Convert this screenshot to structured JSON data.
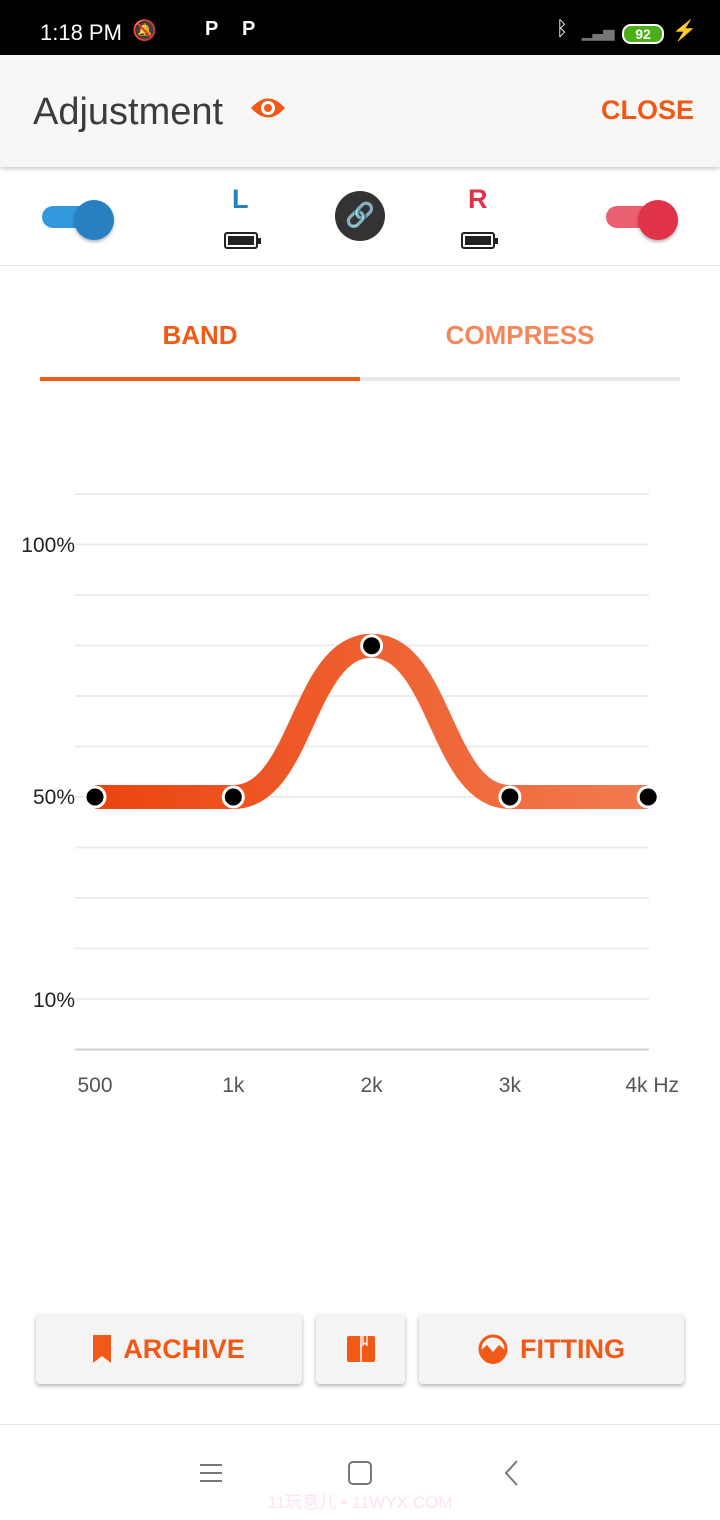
{
  "status_bar": {
    "time": "1:18 PM",
    "battery": "92"
  },
  "header": {
    "title": "Adjustment",
    "close_label": "CLOSE"
  },
  "devices": {
    "left_label": "L",
    "right_label": "R",
    "left_enabled": true,
    "right_enabled": true,
    "left_color": "#2680c2",
    "right_color": "#e0334a"
  },
  "tabs": [
    {
      "label": "BAND",
      "active": true
    },
    {
      "label": "COMPRESS",
      "active": false
    }
  ],
  "chart_data": {
    "type": "line",
    "categories": [
      "500",
      "1k",
      "2k",
      "3k",
      "4k Hz"
    ],
    "values": [
      50,
      50,
      80,
      50,
      50
    ],
    "y_tick_labels": [
      {
        "value": 100,
        "label": "100%"
      },
      {
        "value": 50,
        "label": "50%"
      },
      {
        "value": 10,
        "label": "10%"
      }
    ],
    "grid": true,
    "smooth": true
  },
  "buttons": {
    "archive": "ARCHIVE",
    "fitting": "FITTING"
  },
  "watermark": "11玩意儿 • 11WYX.COM",
  "colors": {
    "accent": "#f15a16"
  }
}
